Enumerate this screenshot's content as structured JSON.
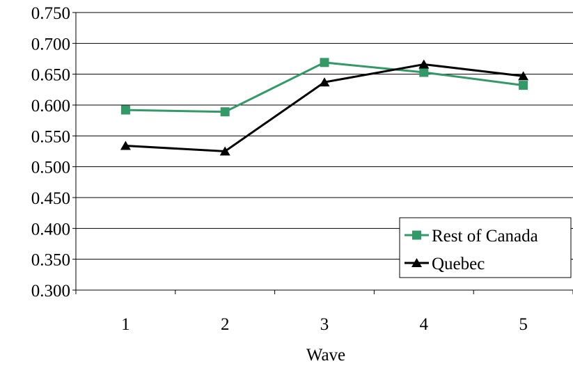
{
  "chart_data": {
    "type": "line",
    "title": "",
    "xlabel": "Wave",
    "ylabel": "",
    "categories": [
      "1",
      "2",
      "3",
      "4",
      "5"
    ],
    "ylim": [
      0.3,
      0.75
    ],
    "yticks": [
      "0.750",
      "0.700",
      "0.650",
      "0.600",
      "0.550",
      "0.500",
      "0.450",
      "0.400",
      "0.350",
      "0.300"
    ],
    "grid": true,
    "legend_position": "bottom-right",
    "series": [
      {
        "name": "Rest of Canada",
        "values": [
          0.592,
          0.589,
          0.669,
          0.653,
          0.632
        ],
        "color": "#339966",
        "marker": "square"
      },
      {
        "name": "Quebec",
        "values": [
          0.534,
          0.525,
          0.637,
          0.666,
          0.647
        ],
        "color": "#000000",
        "marker": "triangle"
      }
    ]
  }
}
